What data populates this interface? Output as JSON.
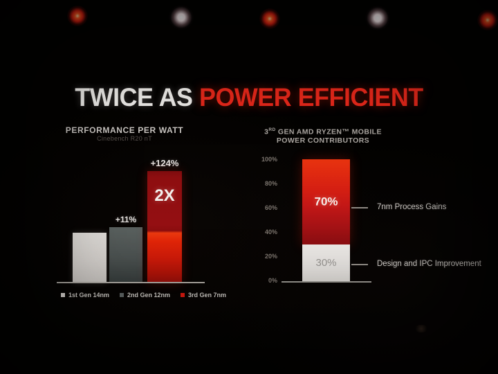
{
  "slide": {
    "title_white": "TWICE AS",
    "title_red": "POWER EFFICIENT",
    "accent_red": "#e2271a",
    "stage_lights": [
      "red",
      "white",
      "red",
      "white",
      "red"
    ]
  },
  "left_chart": {
    "title": "PERFORMANCE PER WATT",
    "subtitle": "Cinebench R20 nT",
    "bars": [
      {
        "legend": "1st Gen 14nm",
        "delta_label": "",
        "annotation": "",
        "color": "#d9d5d1"
      },
      {
        "legend": "2nd Gen 12nm",
        "delta_label": "+11%",
        "annotation": "",
        "color": "#565c5b"
      },
      {
        "legend": "3rd Gen 7nm",
        "delta_label": "+124%",
        "annotation": "2X",
        "color": "#c01412"
      }
    ]
  },
  "right_chart": {
    "title_num": "3",
    "title_sup": "RD",
    "title_line1_rest": " GEN AMD RYZEN™ MOBILE",
    "title_line2": "POWER CONTRIBUTORS",
    "y_ticks": [
      "100%",
      "80%",
      "60%",
      "40%",
      "20%",
      "0%"
    ],
    "segments": {
      "red": {
        "value_label": "70%",
        "callout": "7nm Process Gains",
        "color": "#d51f12"
      },
      "white": {
        "value_label": "30%",
        "callout": "Design and IPC Improvement",
        "color": "#e5e2df"
      }
    }
  },
  "chart_data": [
    {
      "type": "bar",
      "title": "PERFORMANCE PER WATT",
      "subtitle": "Cinebench R20 nT",
      "categories": [
        "1st Gen 14nm",
        "2nd Gen 12nm",
        "3rd Gen 7nm"
      ],
      "values": [
        100,
        111,
        224
      ],
      "baseline_note": "1st Gen 14nm = 100",
      "data_labels": [
        "",
        "+11%",
        "+124%"
      ],
      "annotations": [
        "",
        "",
        "2X"
      ],
      "legend_position": "bottom",
      "grid": false,
      "colors": [
        "#d9d5d1",
        "#565c5b",
        "#c01412"
      ]
    },
    {
      "type": "bar",
      "subtype": "stacked",
      "title": "3RD GEN AMD RYZEN™ MOBILE POWER CONTRIBUTORS",
      "categories": [
        "Power Contributors"
      ],
      "series": [
        {
          "name": "Design and IPC Improvement",
          "values": [
            30
          ],
          "color": "#e5e2df"
        },
        {
          "name": "7nm Process Gains",
          "values": [
            70
          ],
          "color": "#d51f12"
        }
      ],
      "ylim": [
        0,
        100
      ],
      "y_ticks_percent": [
        0,
        20,
        40,
        60,
        80,
        100
      ],
      "grid": false,
      "legend_position": "right-callouts"
    }
  ]
}
